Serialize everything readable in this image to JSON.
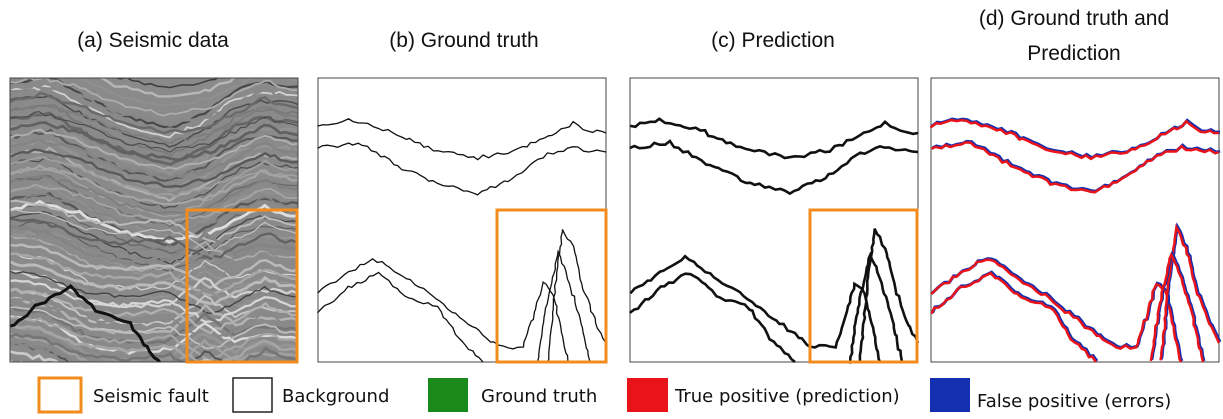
{
  "panels": [
    {
      "title_lines": [
        "(a) Seismic data"
      ]
    },
    {
      "title_lines": [
        "(b) Ground truth"
      ]
    },
    {
      "title_lines": [
        "(c) Prediction"
      ]
    },
    {
      "title_lines": [
        "(d) Ground truth and",
        "Prediction"
      ]
    }
  ],
  "legend": [
    {
      "label": "Seismic fault"
    },
    {
      "label": "Background"
    },
    {
      "label": "Ground truth"
    },
    {
      "label": "True positive (prediction)"
    },
    {
      "label": "False positive (errors)"
    }
  ]
}
